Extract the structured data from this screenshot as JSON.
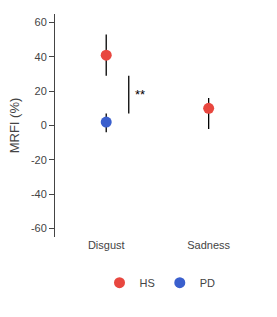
{
  "chart_data": {
    "type": "scatter",
    "categories": [
      "Disgust",
      "Sadness"
    ],
    "ylabel": "MRFI (%)",
    "series": [
      {
        "name": "HS",
        "color": "#e8473f",
        "marker": "circle",
        "values": [
          41.0,
          10.0
        ],
        "error_upper": [
          12.0,
          6.0
        ],
        "error_lower": [
          12.0,
          12.0
        ]
      },
      {
        "name": "PD",
        "color": "#3a5fcd",
        "marker": "circle",
        "values": [
          2.0,
          null
        ],
        "error_upper": [
          5.0,
          null
        ],
        "error_lower": [
          6.0,
          null
        ]
      }
    ],
    "annotations": [
      {
        "text": "**",
        "category": "Disgust",
        "y": 18,
        "bracket": [
          7,
          29
        ]
      }
    ],
    "ylim": [
      -65,
      65
    ],
    "yticks": [
      -60,
      -40,
      -20,
      0,
      20,
      40,
      60
    ],
    "grid": false,
    "legend": "bottom"
  }
}
